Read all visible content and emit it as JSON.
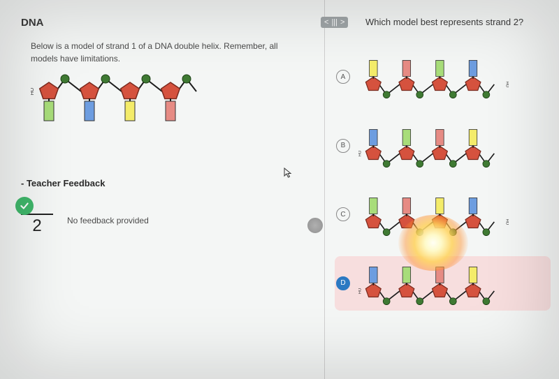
{
  "title": "DNA",
  "intro": "Below is a model of strand 1 of a DNA double helix. Remember, all models have limitations.",
  "feedback_heading": "- Teacher Feedback",
  "feedback_text": "No feedback provided",
  "score_denominator": "2",
  "check_bg": "#3fb66a",
  "nav": {
    "prev": "<",
    "bars": "|||",
    "next": ">"
  },
  "question": "Which model best represents strand 2?",
  "options": [
    {
      "letter": "A",
      "selected": false
    },
    {
      "letter": "B",
      "selected": false
    },
    {
      "letter": "C",
      "selected": false
    },
    {
      "letter": "D",
      "selected": true
    }
  ],
  "selected_highlight": "#f7dede",
  "strand_style": {
    "sugar_fill": "#d5523e",
    "sugar_stroke": "#7a2a1e",
    "phosphate_fill": "#3f7a33",
    "bond_color": "#1c1c1c",
    "ho_label": "HO",
    "ho_fontsize": 7
  },
  "base_colors": {
    "green": "#a8dd7a",
    "blue": "#6d9de0",
    "yellow": "#f4ec6a",
    "red": "#e68b84"
  },
  "prompt_strand": {
    "scale": 1.0,
    "orientation": "down",
    "ho_side": "left",
    "bases": [
      "green",
      "blue",
      "yellow",
      "red"
    ]
  },
  "option_strands": {
    "A": {
      "orientation": "up",
      "ho_side": "right",
      "bases": [
        "yellow",
        "red",
        "green",
        "blue"
      ]
    },
    "B": {
      "orientation": "up",
      "ho_side": "left",
      "bases": [
        "blue",
        "green",
        "red",
        "yellow"
      ]
    },
    "C": {
      "orientation": "up",
      "ho_side": "right",
      "bases": [
        "green",
        "red",
        "yellow",
        "blue"
      ]
    },
    "D": {
      "orientation": "up",
      "ho_side": "left",
      "bases": [
        "blue",
        "green",
        "red",
        "yellow"
      ]
    }
  }
}
